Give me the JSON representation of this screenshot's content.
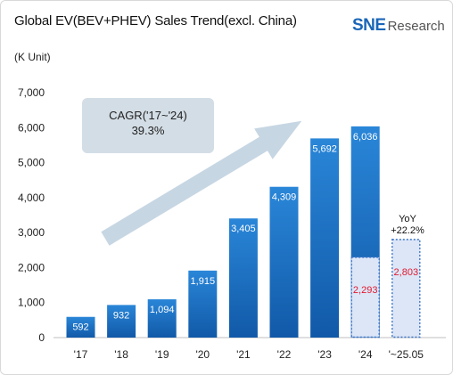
{
  "header": {
    "title": "Global EV(BEV+PHEV) Sales Trend(excl. China)",
    "unit": "(K Unit)",
    "logo_sne": "SNE",
    "logo_research": "Research"
  },
  "annotation": {
    "cagr_label": "CAGR('17~'24)",
    "cagr_value": "39.3%",
    "yoy_label": "YoY",
    "yoy_value": "+22.2%"
  },
  "colors": {
    "bar_top": "#2a86d8",
    "bar_bottom": "#1159a8",
    "partial_fill": "#dde6f7",
    "partial_border": "#3a74c8",
    "partial_value": "#e0192f",
    "arrow": "#c7d6e3"
  },
  "chart_data": {
    "type": "bar",
    "categories": [
      "'17",
      "'18",
      "'19",
      "'20",
      "'21",
      "'22",
      "'23",
      "'24",
      "'~25.05"
    ],
    "values": [
      592,
      932,
      1094,
      1915,
      3405,
      4309,
      5692,
      6036,
      null
    ],
    "value_labels": [
      "592",
      "932",
      "1,094",
      "1,915",
      "3,405",
      "4,309",
      "5,692",
      "6,036",
      ""
    ],
    "partial_values": [
      null,
      null,
      null,
      null,
      null,
      null,
      null,
      2293,
      2803
    ],
    "partial_labels": [
      "",
      "",
      "",
      "",
      "",
      "",
      "",
      "2,293",
      "2,803"
    ],
    "ylim": [
      0,
      7000
    ],
    "yticks": [
      0,
      1000,
      2000,
      3000,
      4000,
      5000,
      6000,
      7000
    ],
    "ytick_labels": [
      "0",
      "1,000",
      "2,000",
      "3,000",
      "4,000",
      "5,000",
      "6,000",
      "7,000"
    ],
    "grid": false,
    "legend": "none"
  }
}
